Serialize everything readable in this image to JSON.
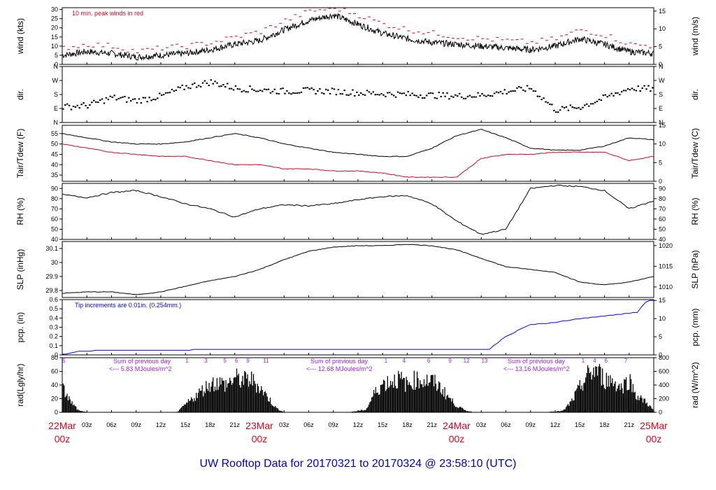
{
  "title": "UW Rooftop Data for 20170321  to  20170324 @ 23:58:10  (UTC)",
  "colors": {
    "accent_red": "#e8001c",
    "blue": "#0000ff",
    "purple": "#a020f0",
    "title_blue": "#0000cc"
  },
  "chart_data": [
    {
      "type": "line",
      "name": "wind",
      "ylabel": "wind (kts)",
      "ylabel_right": "wind (m/s)",
      "ylim": [
        0,
        31
      ],
      "yticks": [
        0,
        5,
        10,
        15,
        20,
        25,
        30
      ],
      "yticks_right": [
        0,
        5,
        10,
        15
      ],
      "annotation": "10 min. peak winds in red",
      "x_hours": [
        0,
        3,
        6,
        9,
        12,
        15,
        18,
        21,
        24,
        27,
        30,
        33,
        36,
        39,
        42,
        45,
        48,
        51,
        54,
        57,
        60,
        63,
        66,
        69,
        72
      ],
      "series": [
        {
          "values": [
            5,
            7,
            6,
            4,
            5,
            6,
            8,
            11,
            13,
            19,
            24,
            27,
            22,
            17,
            14,
            12,
            11,
            10,
            9,
            8,
            10,
            14,
            11,
            7,
            6
          ]
        },
        {
          "color": "red",
          "values": [
            9,
            11,
            10,
            7,
            9,
            10,
            12,
            15,
            18,
            24,
            29,
            31,
            27,
            22,
            19,
            17,
            15,
            14,
            13,
            12,
            14,
            19,
            16,
            11,
            10
          ]
        }
      ]
    },
    {
      "type": "scatter",
      "name": "dir",
      "ylabel": "dir.",
      "ylabel_right": "dir.",
      "yticks": [
        "N",
        "E",
        "S",
        "W",
        "N"
      ],
      "ytick_degrees": [
        0,
        90,
        180,
        270,
        360
      ],
      "ylim": [
        0,
        360
      ],
      "x_hours": [
        0,
        3,
        6,
        9,
        12,
        15,
        18,
        21,
        24,
        27,
        30,
        33,
        36,
        39,
        42,
        45,
        48,
        51,
        54,
        57,
        60,
        63,
        66,
        69,
        72
      ],
      "values": [
        100,
        110,
        160,
        140,
        170,
        230,
        260,
        220,
        210,
        200,
        205,
        200,
        190,
        185,
        180,
        175,
        170,
        175,
        200,
        220,
        80,
        100,
        160,
        220,
        215
      ]
    },
    {
      "type": "line",
      "name": "temp",
      "ylabel": "Tair/Tdew (F)",
      "ylabel_right": "Tair/Tdew (C)",
      "ylim": [
        32,
        59
      ],
      "yticks": [
        35,
        40,
        45,
        50,
        55
      ],
      "yticks_right": [
        0,
        5,
        10,
        15
      ],
      "x_hours": [
        0,
        3,
        6,
        9,
        12,
        15,
        18,
        21,
        24,
        27,
        30,
        33,
        36,
        39,
        42,
        45,
        48,
        51,
        54,
        57,
        60,
        63,
        66,
        69,
        72
      ],
      "series": [
        {
          "color": "black",
          "values": [
            55,
            53,
            51,
            50,
            50,
            51,
            53,
            55,
            53,
            50,
            48,
            46,
            45,
            44,
            44,
            48,
            54,
            57,
            53,
            48,
            47,
            47,
            49,
            53,
            52
          ]
        },
        {
          "color": "red",
          "values": [
            50,
            48,
            46,
            45,
            44,
            44,
            42,
            40,
            40,
            38,
            38,
            37,
            37,
            36,
            34,
            34,
            34,
            43,
            45,
            45,
            46,
            46,
            46,
            42,
            44
          ]
        }
      ]
    },
    {
      "type": "line",
      "name": "rh",
      "ylabel": "RH (%)",
      "ylabel_right": "RH (%)",
      "ylim": [
        40,
        95
      ],
      "yticks": [
        40,
        50,
        60,
        70,
        80,
        90
      ],
      "yticks_right": [
        40,
        50,
        60,
        70,
        80,
        90
      ],
      "x_hours": [
        0,
        3,
        6,
        9,
        12,
        15,
        18,
        21,
        24,
        27,
        30,
        33,
        36,
        39,
        42,
        45,
        48,
        51,
        54,
        57,
        60,
        63,
        66,
        69,
        72
      ],
      "values": [
        84,
        81,
        86,
        88,
        82,
        75,
        70,
        62,
        70,
        74,
        73,
        75,
        79,
        82,
        83,
        75,
        58,
        45,
        50,
        90,
        93,
        92,
        88,
        70,
        78
      ]
    },
    {
      "type": "line",
      "name": "slp",
      "ylabel": "SLP (inHg)",
      "ylabel_right": "SLP (hPa)",
      "ylim": [
        29.75,
        30.15
      ],
      "yticks": [
        29.8,
        29.9,
        30.0,
        30.1
      ],
      "yticks_right": [
        1010,
        1015,
        1020
      ],
      "x_hours": [
        0,
        3,
        6,
        9,
        12,
        15,
        18,
        21,
        24,
        27,
        30,
        33,
        36,
        39,
        42,
        45,
        48,
        51,
        54,
        57,
        60,
        63,
        66,
        69,
        72
      ],
      "values": [
        29.78,
        29.79,
        29.79,
        29.77,
        29.79,
        29.83,
        29.87,
        29.9,
        29.95,
        30.02,
        30.08,
        30.11,
        30.12,
        30.12,
        30.13,
        30.12,
        30.09,
        30.03,
        29.97,
        29.95,
        29.93,
        29.86,
        29.84,
        29.86,
        29.9
      ]
    },
    {
      "type": "line",
      "name": "pcp",
      "ylabel": "pcp. (in)",
      "ylabel_right": "pcp. (mm)",
      "ylim": [
        0,
        0.6
      ],
      "yticks": [
        0.0,
        0.1,
        0.2,
        0.3,
        0.4,
        0.5,
        0.6
      ],
      "yticks_right": [
        0,
        5,
        10,
        15
      ],
      "annotation": "Tip increments are 0.01in. (0.254mm.)",
      "x_hours": [
        0,
        2,
        6,
        12,
        20,
        26,
        36,
        46,
        52,
        54,
        57,
        60,
        62,
        66,
        70,
        71,
        72
      ],
      "values": [
        0,
        0.04,
        0.05,
        0.05,
        0.06,
        0.06,
        0.06,
        0.06,
        0.06,
        0.2,
        0.33,
        0.35,
        0.38,
        0.42,
        0.46,
        0.57,
        0.6
      ]
    },
    {
      "type": "area",
      "name": "rad",
      "ylabel": "rad(Lgly/hr)",
      "ylabel_right": "rad (W/m^2)",
      "ylim": [
        0,
        80
      ],
      "yticks": [
        0,
        20,
        40,
        60,
        80
      ],
      "yticks_right": [
        0,
        200,
        400,
        600,
        800
      ],
      "hour_marks": [
        [
          "5",
          0.2
        ],
        [
          "1",
          15.2
        ],
        [
          "3",
          17.5
        ],
        [
          "5",
          19.8
        ],
        [
          "6",
          21.2
        ],
        [
          "9",
          22.6
        ],
        [
          "11",
          24.8
        ],
        [
          "1",
          39.4
        ],
        [
          "4",
          41.6
        ],
        [
          "6",
          44.6
        ],
        [
          "9",
          47.2
        ],
        [
          "12",
          49.2
        ],
        [
          "13",
          51.4
        ],
        [
          "1",
          63.4
        ],
        [
          "4",
          64.8
        ],
        [
          "6",
          66.2
        ],
        [
          "7",
          68.6
        ]
      ],
      "notes": [
        {
          "line1": "Sum of previous day",
          "line2": "<--- 5.83 MJoules/m^2",
          "x": 4
        },
        {
          "line1": "Sum of previous day",
          "line2": "<--- 12.68 MJoules/m^2",
          "x": 28
        },
        {
          "line1": "Sum of previous day",
          "line2": "<--- 13.16 MJoules/m^2",
          "x": 52
        }
      ],
      "x_hours": [
        0,
        1,
        2,
        3,
        12,
        14,
        15,
        16,
        17,
        18,
        19,
        20,
        21,
        22,
        23,
        24,
        25,
        26,
        27,
        35,
        37,
        38,
        39,
        40,
        41,
        42,
        43,
        44,
        45,
        46,
        47,
        48,
        49,
        50,
        51,
        59,
        61,
        62,
        63,
        64,
        65,
        66,
        67,
        68,
        69,
        70,
        71,
        72
      ],
      "values": [
        45,
        20,
        3,
        0,
        0,
        0,
        14,
        27,
        40,
        52,
        55,
        50,
        63,
        58,
        60,
        47,
        28,
        8,
        0,
        0,
        5,
        35,
        52,
        57,
        61,
        50,
        60,
        58,
        57,
        46,
        28,
        12,
        4,
        0,
        0,
        0,
        3,
        20,
        45,
        68,
        78,
        60,
        58,
        45,
        60,
        28,
        20,
        3
      ]
    }
  ],
  "x_axis": {
    "hour_labels": [
      "03z",
      "06z",
      "09z",
      "12z",
      "15z",
      "18z",
      "21z",
      "03z",
      "06z",
      "09z",
      "12z",
      "15z",
      "18z",
      "21z",
      "03z",
      "06z",
      "09z",
      "12z",
      "15z",
      "18z",
      "21z"
    ],
    "hour_positions": [
      3,
      6,
      9,
      12,
      15,
      18,
      21,
      27,
      30,
      33,
      36,
      39,
      42,
      45,
      51,
      54,
      57,
      60,
      63,
      66,
      69
    ],
    "days": [
      {
        "date": "22Mar",
        "z": "00z",
        "hour": 0
      },
      {
        "date": "23Mar",
        "z": "00z",
        "hour": 24
      },
      {
        "date": "24Mar",
        "z": "00z",
        "hour": 48
      },
      {
        "date": "25Mar",
        "z": "00z",
        "hour": 72
      }
    ]
  }
}
